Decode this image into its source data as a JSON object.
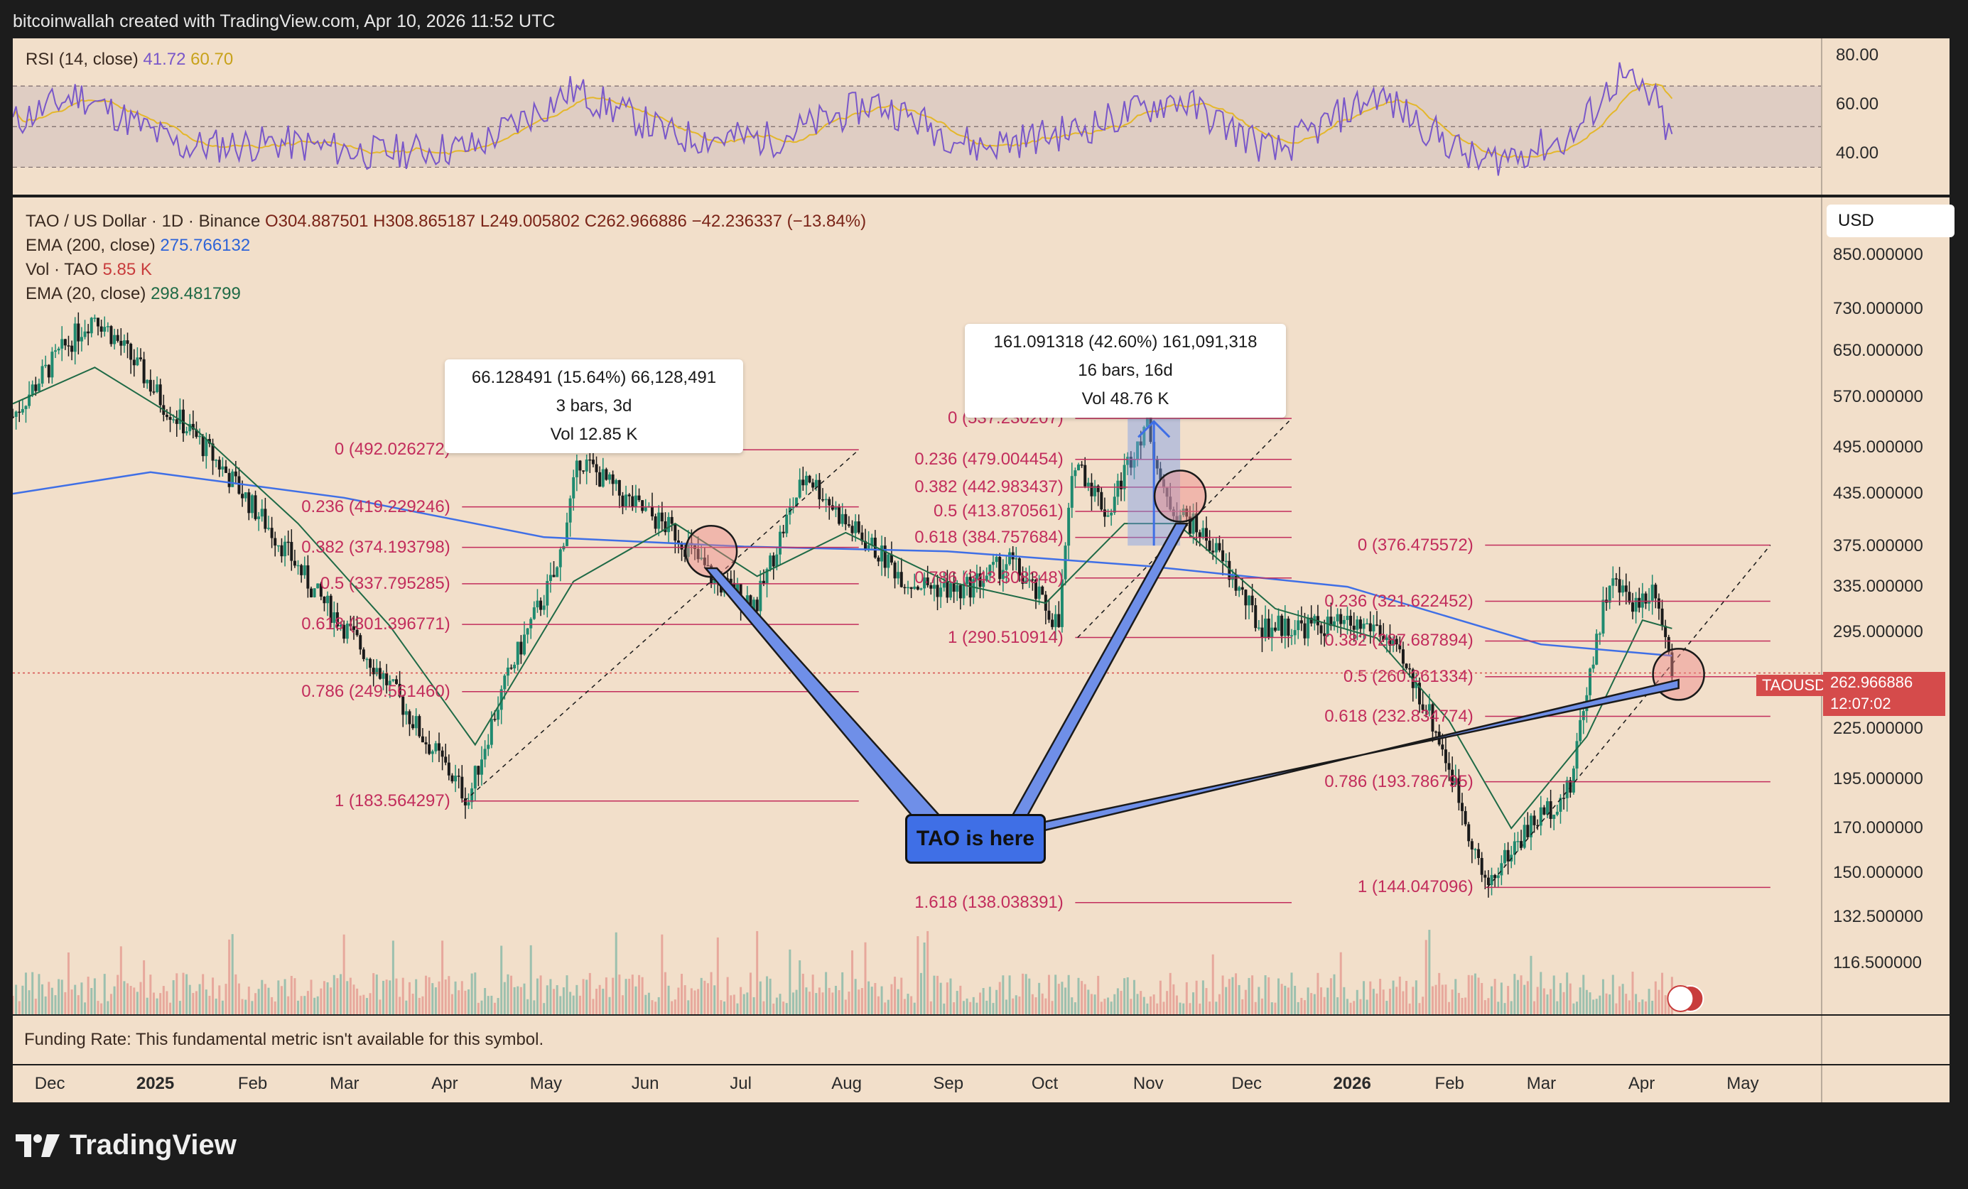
{
  "header": "bitcoinwallah created with TradingView.com, Apr 10, 2026 11:52 UTC",
  "rsi": {
    "label_prefix": "RSI (14, close)",
    "value": "41.72",
    "ma_value": "60.70",
    "axis": [
      "80.00",
      "60.00",
      "40.00"
    ],
    "upper_band": 70,
    "middle_band": 50,
    "lower_band": 30
  },
  "legend": {
    "line1_prefix": "TAO / US Dollar · 1D · Binance",
    "ohlc": "O304.887501  H308.865187  L249.005802  C262.966886  −42.236337 (−13.84%)",
    "ema200_label": "EMA (200, close)",
    "ema200_value": "275.766132",
    "vol_label": "Vol · TAO",
    "vol_value": "5.85 K",
    "ema20_label": "EMA (20, close)",
    "ema20_value": "298.481799"
  },
  "currency_box": "USD",
  "price_axis": [
    "850.000000",
    "730.000000",
    "650.000000",
    "570.000000",
    "495.000000",
    "435.000000",
    "375.000000",
    "335.000000",
    "295.000000",
    "225.000000",
    "195.000000",
    "170.000000",
    "150.000000",
    "132.500000",
    "116.500000"
  ],
  "current_price": {
    "label": "TAOUSD",
    "value": "262.966886",
    "countdown": "12:07:02"
  },
  "measure_tooltips": [
    {
      "line1": "66.128491 (15.64%) 66,128,491",
      "line2": "3 bars, 3d",
      "line3": "Vol 12.85 K"
    },
    {
      "line1": "161.091318 (42.60%) 161,091,318",
      "line2": "16 bars, 16d",
      "line3": "Vol 48.76 K"
    }
  ],
  "callout": "TAO is here",
  "fib_sets": [
    {
      "levels": [
        "0 (492.026272)",
        "0.236 (419.229246)",
        "0.382 (374.193798)",
        "0.5 (337.795285)",
        "0.618 (301.396771)",
        "0.786 (249.561460)",
        "1 (183.564297)"
      ]
    },
    {
      "levels": [
        "0 (537.230207)",
        "0.236 (479.004454)",
        "0.382 (442.983437)",
        "0.5 (413.870561)",
        "0.618 (384.757684)",
        "0.786 (343.308348)",
        "1 (290.510914)",
        "1.618 (138.038391)"
      ]
    },
    {
      "levels": [
        "0 (376.475572)",
        "0.236 (321.622452)",
        "0.382 (287.687894)",
        "0.5 (260.261334)",
        "0.618 (232.834774)",
        "0.786 (193.786795)",
        "1 (144.047096)"
      ]
    }
  ],
  "funding": "Funding Rate: This fundamental metric isn't available for this symbol.",
  "time_axis": [
    "Dec",
    "2025",
    "Feb",
    "Mar",
    "Apr",
    "May",
    "Jun",
    "Jul",
    "Aug",
    "Sep",
    "Oct",
    "Nov",
    "Dec",
    "2026",
    "Feb",
    "Mar",
    "Apr",
    "May"
  ],
  "brand": "TradingView",
  "colors": {
    "up": "#1f8a6f",
    "down": "#1a1a1a",
    "ema200": "#3f6fe6",
    "ema20": "#1f6a46",
    "rsi": "#7957c9",
    "rsi_ma": "#e4b72a",
    "fib": "#c22d5c",
    "accent_red": "#d54b4b"
  },
  "chart_data": {
    "type": "line",
    "title": "TAO / US Dollar · 1D · Binance",
    "y_scale": "log",
    "ylim": [
      105,
      960
    ],
    "x_range": [
      "2024-11-20",
      "2026-05-20"
    ],
    "series": [
      {
        "name": "TAO / US Dollar",
        "x": [
          "2024-11-20",
          "2024-12-05",
          "2024-12-15",
          "2025-01-05",
          "2025-02-01",
          "2025-02-20",
          "2025-03-10",
          "2025-03-25",
          "2025-04-08",
          "2025-04-20",
          "2025-05-05",
          "2025-05-12",
          "2025-05-25",
          "2025-06-10",
          "2025-06-22",
          "2025-07-05",
          "2025-07-20",
          "2025-08-01",
          "2025-08-20",
          "2025-09-05",
          "2025-09-20",
          "2025-10-05",
          "2025-10-10",
          "2025-10-20",
          "2025-11-01",
          "2025-11-06",
          "2025-11-20",
          "2025-12-05",
          "2025-12-25",
          "2026-01-10",
          "2026-01-25",
          "2026-02-05",
          "2026-02-12",
          "2026-02-25",
          "2026-03-10",
          "2026-03-22",
          "2026-03-30",
          "2026-04-05",
          "2026-04-10"
        ],
        "values": [
          540,
          650,
          720,
          560,
          420,
          330,
          270,
          220,
          184,
          260,
          350,
          480,
          430,
          390,
          340,
          320,
          460,
          400,
          340,
          330,
          360,
          300,
          480,
          410,
          537,
          430,
          380,
          300,
          300,
          300,
          240,
          180,
          144,
          170,
          190,
          340,
          320,
          335,
          263
        ]
      },
      {
        "name": "EMA (200, close)",
        "x": [
          "2024-11-20",
          "2025-01-01",
          "2025-03-01",
          "2025-05-01",
          "2025-07-01",
          "2025-09-01",
          "2025-11-01",
          "2026-01-01",
          "2026-03-01",
          "2026-04-10"
        ],
        "values": [
          435,
          462,
          430,
          385,
          375,
          370,
          355,
          335,
          285,
          276
        ]
      },
      {
        "name": "EMA (20, close)",
        "x": [
          "2024-11-20",
          "2024-12-15",
          "2025-01-15",
          "2025-02-15",
          "2025-03-15",
          "2025-04-10",
          "2025-05-10",
          "2025-06-10",
          "2025-07-05",
          "2025-08-01",
          "2025-09-01",
          "2025-10-01",
          "2025-10-25",
          "2025-11-10",
          "2025-12-10",
          "2026-01-10",
          "2026-02-01",
          "2026-02-20",
          "2026-03-15",
          "2026-04-01",
          "2026-04-10"
        ],
        "values": [
          560,
          620,
          520,
          400,
          300,
          215,
          340,
          400,
          345,
          390,
          340,
          320,
          400,
          400,
          315,
          290,
          230,
          170,
          220,
          305,
          298
        ]
      },
      {
        "name": "RSI (14, close)",
        "x": [
          "2024-11-20",
          "2024-12-10",
          "2025-01-10",
          "2025-02-10",
          "2025-03-10",
          "2025-04-10",
          "2025-05-10",
          "2025-06-10",
          "2025-07-10",
          "2025-08-10",
          "2025-09-10",
          "2025-10-10",
          "2025-11-10",
          "2025-12-10",
          "2026-01-10",
          "2026-02-10",
          "2026-03-10",
          "2026-03-25",
          "2026-04-05",
          "2026-04-10"
        ],
        "values": [
          52,
          66,
          40,
          42,
          37,
          40,
          68,
          45,
          44,
          62,
          40,
          48,
          64,
          37,
          66,
          32,
          44,
          75,
          62,
          41.72
        ]
      }
    ]
  }
}
